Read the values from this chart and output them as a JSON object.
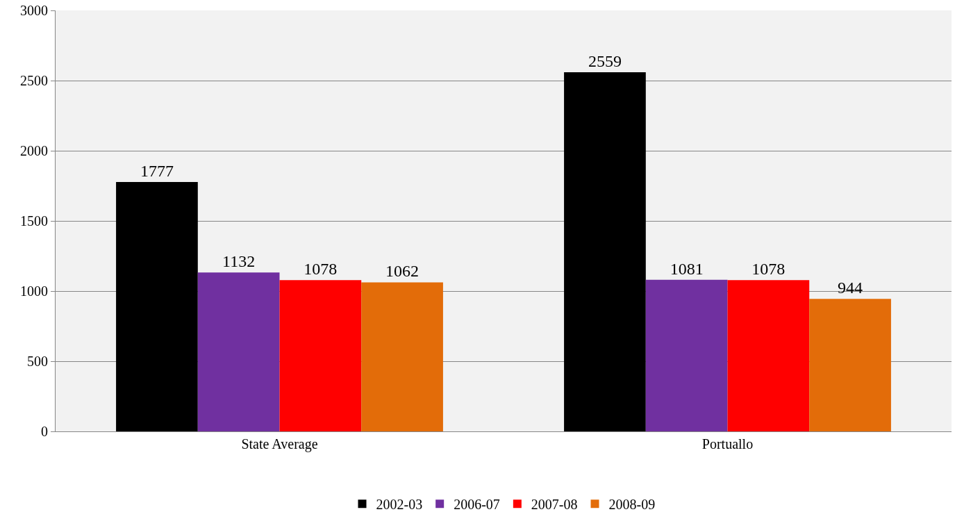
{
  "chart_data": {
    "type": "bar",
    "categories": [
      "State Average",
      "Portuallo"
    ],
    "series": [
      {
        "name": "2002-03",
        "color": "#000000",
        "values": [
          1777,
          2559
        ]
      },
      {
        "name": "2006-07",
        "color": "#7030a0",
        "values": [
          1132,
          1081
        ]
      },
      {
        "name": "2007-08",
        "color": "#ff0000",
        "values": [
          1078,
          1078
        ]
      },
      {
        "name": "2008-09",
        "color": "#e36c09",
        "values": [
          1062,
          944
        ]
      }
    ],
    "ylim": [
      0,
      3000
    ],
    "yticks": [
      0,
      500,
      1000,
      1500,
      2000,
      2500,
      3000
    ],
    "grid": "y",
    "legend": "bottom",
    "data_labels": true
  }
}
